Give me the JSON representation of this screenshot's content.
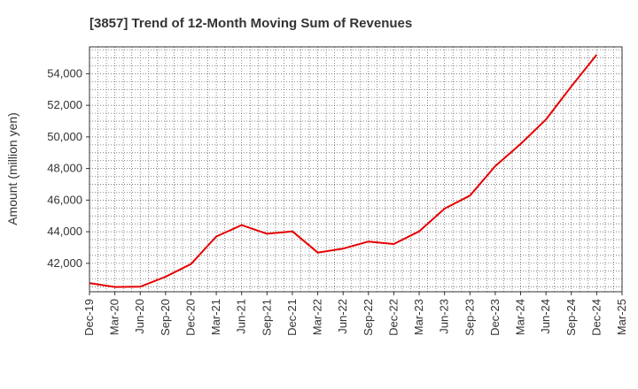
{
  "chart_data": {
    "type": "line",
    "title": "[3857]  Trend of 12-Month Moving Sum of Revenues",
    "xlabel": "",
    "ylabel": "Amount (million yen)",
    "ylim": [
      40200,
      55700
    ],
    "yticks": [
      42000,
      44000,
      46000,
      48000,
      50000,
      52000,
      54000
    ],
    "ytick_labels": [
      "42,000",
      "44,000",
      "46,000",
      "48,000",
      "50,000",
      "52,000",
      "54,000"
    ],
    "categories": [
      "Dec-19",
      "Mar-20",
      "Jun-20",
      "Sep-20",
      "Dec-20",
      "Mar-21",
      "Jun-21",
      "Sep-21",
      "Dec-21",
      "Mar-22",
      "Jun-22",
      "Sep-22",
      "Dec-22",
      "Mar-23",
      "Jun-23",
      "Sep-23",
      "Dec-23",
      "Mar-24",
      "Jun-24",
      "Sep-24",
      "Dec-24",
      "Mar-25"
    ],
    "series": [
      {
        "values": [
          40750,
          40500,
          40520,
          41150,
          41950,
          43700,
          44420,
          43870,
          44020,
          42680,
          42930,
          43380,
          43220,
          44020,
          45460,
          46280,
          48150,
          49550,
          51100,
          53200,
          55200,
          null
        ],
        "color": "#e60000"
      }
    ],
    "grid": true,
    "legend": "none"
  }
}
